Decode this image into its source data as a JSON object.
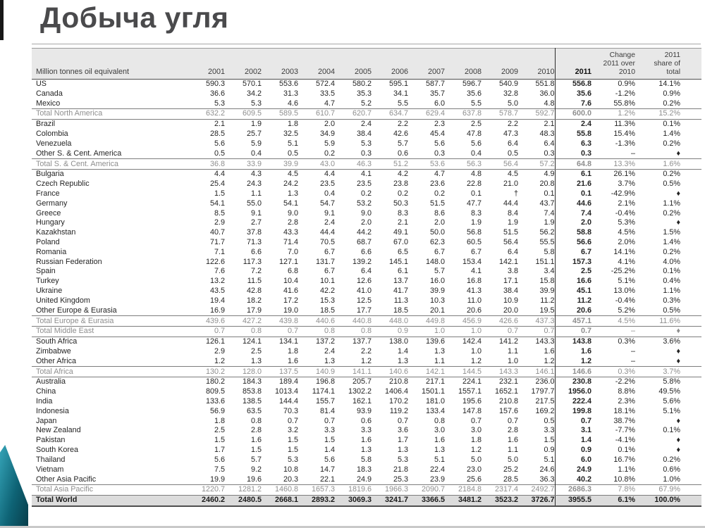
{
  "title": "Добыча угля",
  "table": {
    "unit_label": "Million tonnes oil equivalent",
    "years": [
      "2001",
      "2002",
      "2003",
      "2004",
      "2005",
      "2006",
      "2007",
      "2008",
      "2009",
      "2010"
    ],
    "year_2011": "2011",
    "change_header": "Change\n2011 over\n2010",
    "share_header": "2011\nshare of\ntotal",
    "rows": [
      {
        "name": "US",
        "type": "data",
        "values": [
          "590.3",
          "570.1",
          "553.6",
          "572.4",
          "580.2",
          "595.1",
          "587.7",
          "596.7",
          "540.9",
          "551.8"
        ],
        "v2011": "556.8",
        "change": "0.9%",
        "share": "14.1%"
      },
      {
        "name": "Canada",
        "type": "data",
        "values": [
          "36.6",
          "34.2",
          "31.3",
          "33.5",
          "35.3",
          "34.1",
          "35.7",
          "35.6",
          "32.8",
          "36.0"
        ],
        "v2011": "35.6",
        "change": "-1.2%",
        "share": "0.9%"
      },
      {
        "name": "Mexico",
        "type": "data",
        "values": [
          "5.3",
          "5.3",
          "4.6",
          "4.7",
          "5.2",
          "5.5",
          "6.0",
          "5.5",
          "5.0",
          "4.8"
        ],
        "v2011": "7.6",
        "change": "55.8%",
        "share": "0.2%"
      },
      {
        "name": "Total North America",
        "type": "total",
        "values": [
          "632.2",
          "609.5",
          "589.5",
          "610.7",
          "620.7",
          "634.7",
          "629.4",
          "637.8",
          "578.7",
          "592.7"
        ],
        "v2011": "600.0",
        "change": "1.2%",
        "share": "15.2%"
      },
      {
        "name": "Brazil",
        "type": "data",
        "values": [
          "2.1",
          "1.9",
          "1.8",
          "2.0",
          "2.4",
          "2.2",
          "2.3",
          "2.5",
          "2.2",
          "2.1"
        ],
        "v2011": "2.4",
        "change": "11.3%",
        "share": "0.1%"
      },
      {
        "name": "Colombia",
        "type": "data",
        "values": [
          "28.5",
          "25.7",
          "32.5",
          "34.9",
          "38.4",
          "42.6",
          "45.4",
          "47.8",
          "47.3",
          "48.3"
        ],
        "v2011": "55.8",
        "change": "15.4%",
        "share": "1.4%"
      },
      {
        "name": "Venezuela",
        "type": "data",
        "values": [
          "5.6",
          "5.9",
          "5.1",
          "5.9",
          "5.3",
          "5.7",
          "5.6",
          "5.6",
          "6.4",
          "6.4"
        ],
        "v2011": "6.3",
        "change": "-1.3%",
        "share": "0.2%"
      },
      {
        "name": "Other S. & Cent. America",
        "type": "data",
        "values": [
          "0.5",
          "0.4",
          "0.5",
          "0.2",
          "0.3",
          "0.6",
          "0.3",
          "0.4",
          "0.5",
          "0.3"
        ],
        "v2011": "0.3",
        "change": "–",
        "share": "♦"
      },
      {
        "name": "Total S. & Cent. America",
        "type": "total",
        "values": [
          "36.8",
          "33.9",
          "39.9",
          "43.0",
          "46.3",
          "51.2",
          "53.6",
          "56.3",
          "56.4",
          "57.2"
        ],
        "v2011": "64.8",
        "change": "13.3%",
        "share": "1.6%"
      },
      {
        "name": "Bulgaria",
        "type": "data",
        "values": [
          "4.4",
          "4.3",
          "4.5",
          "4.4",
          "4.1",
          "4.2",
          "4.7",
          "4.8",
          "4.5",
          "4.9"
        ],
        "v2011": "6.1",
        "change": "26.1%",
        "share": "0.2%"
      },
      {
        "name": "Czech Republic",
        "type": "data",
        "values": [
          "25.4",
          "24.3",
          "24.2",
          "23.5",
          "23.5",
          "23.8",
          "23.6",
          "22.8",
          "21.0",
          "20.8"
        ],
        "v2011": "21.6",
        "change": "3.7%",
        "share": "0.5%"
      },
      {
        "name": "France",
        "type": "data",
        "values": [
          "1.5",
          "1.1",
          "1.3",
          "0.4",
          "0.2",
          "0.2",
          "0.2",
          "0.1",
          "†",
          "0.1"
        ],
        "v2011": "0.1",
        "change": "-42.9%",
        "share": "♦"
      },
      {
        "name": "Germany",
        "type": "data",
        "values": [
          "54.1",
          "55.0",
          "54.1",
          "54.7",
          "53.2",
          "50.3",
          "51.5",
          "47.7",
          "44.4",
          "43.7"
        ],
        "v2011": "44.6",
        "change": "2.1%",
        "share": "1.1%"
      },
      {
        "name": "Greece",
        "type": "data",
        "values": [
          "8.5",
          "9.1",
          "9.0",
          "9.1",
          "9.0",
          "8.3",
          "8.6",
          "8.3",
          "8.4",
          "7.4"
        ],
        "v2011": "7.4",
        "change": "-0.4%",
        "share": "0.2%"
      },
      {
        "name": "Hungary",
        "type": "data",
        "values": [
          "2.9",
          "2.7",
          "2.8",
          "2.4",
          "2.0",
          "2.1",
          "2.0",
          "1.9",
          "1.9",
          "1.9"
        ],
        "v2011": "2.0",
        "change": "5.3%",
        "share": "♦"
      },
      {
        "name": "Kazakhstan",
        "type": "data",
        "values": [
          "40.7",
          "37.8",
          "43.3",
          "44.4",
          "44.2",
          "49.1",
          "50.0",
          "56.8",
          "51.5",
          "56.2"
        ],
        "v2011": "58.8",
        "change": "4.5%",
        "share": "1.5%"
      },
      {
        "name": "Poland",
        "type": "data",
        "values": [
          "71.7",
          "71.3",
          "71.4",
          "70.5",
          "68.7",
          "67.0",
          "62.3",
          "60.5",
          "56.4",
          "55.5"
        ],
        "v2011": "56.6",
        "change": "2.0%",
        "share": "1.4%"
      },
      {
        "name": "Romania",
        "type": "data",
        "values": [
          "7.1",
          "6.6",
          "7.0",
          "6.7",
          "6.6",
          "6.5",
          "6.7",
          "6.7",
          "6.4",
          "5.8"
        ],
        "v2011": "6.7",
        "change": "14.1%",
        "share": "0.2%"
      },
      {
        "name": "Russian Federation",
        "type": "data",
        "values": [
          "122.6",
          "117.3",
          "127.1",
          "131.7",
          "139.2",
          "145.1",
          "148.0",
          "153.4",
          "142.1",
          "151.1"
        ],
        "v2011": "157.3",
        "change": "4.1%",
        "share": "4.0%"
      },
      {
        "name": "Spain",
        "type": "data",
        "values": [
          "7.6",
          "7.2",
          "6.8",
          "6.7",
          "6.4",
          "6.1",
          "5.7",
          "4.1",
          "3.8",
          "3.4"
        ],
        "v2011": "2.5",
        "change": "-25.2%",
        "share": "0.1%"
      },
      {
        "name": "Turkey",
        "type": "data",
        "values": [
          "13.2",
          "11.5",
          "10.4",
          "10.1",
          "12.6",
          "13.7",
          "16.0",
          "16.8",
          "17.1",
          "15.8"
        ],
        "v2011": "16.6",
        "change": "5.1%",
        "share": "0.4%"
      },
      {
        "name": "Ukraine",
        "type": "data",
        "values": [
          "43.5",
          "42.8",
          "41.6",
          "42.2",
          "41.0",
          "41.7",
          "39.9",
          "41.3",
          "38.4",
          "39.9"
        ],
        "v2011": "45.1",
        "change": "13.0%",
        "share": "1.1%"
      },
      {
        "name": "United Kingdom",
        "type": "data",
        "values": [
          "19.4",
          "18.2",
          "17.2",
          "15.3",
          "12.5",
          "11.3",
          "10.3",
          "11.0",
          "10.9",
          "11.2"
        ],
        "v2011": "11.2",
        "change": "-0.4%",
        "share": "0.3%"
      },
      {
        "name": "Other Europe & Eurasia",
        "type": "data",
        "values": [
          "16.9",
          "17.9",
          "19.0",
          "18.5",
          "17.7",
          "18.5",
          "20.1",
          "20.6",
          "20.0",
          "19.5"
        ],
        "v2011": "20.6",
        "change": "5.2%",
        "share": "0.5%"
      },
      {
        "name": "Total Europe & Eurasia",
        "type": "total",
        "values": [
          "439.6",
          "427.2",
          "439.8",
          "440.6",
          "440.8",
          "448.0",
          "449.8",
          "456.9",
          "426.6",
          "437.3"
        ],
        "v2011": "457.1",
        "change": "4.5%",
        "share": "11.6%"
      },
      {
        "name": "Total Middle East",
        "type": "total",
        "values": [
          "0.7",
          "0.8",
          "0.7",
          "0.8",
          "0.8",
          "0.9",
          "1.0",
          "1.0",
          "0.7",
          "0.7"
        ],
        "v2011": "0.7",
        "change": "–",
        "share": "♦"
      },
      {
        "name": "South Africa",
        "type": "data",
        "values": [
          "126.1",
          "124.1",
          "134.1",
          "137.2",
          "137.7",
          "138.0",
          "139.6",
          "142.4",
          "141.2",
          "143.3"
        ],
        "v2011": "143.8",
        "change": "0.3%",
        "share": "3.6%"
      },
      {
        "name": "Zimbabwe",
        "type": "data",
        "values": [
          "2.9",
          "2.5",
          "1.8",
          "2.4",
          "2.2",
          "1.4",
          "1.3",
          "1.0",
          "1.1",
          "1.6"
        ],
        "v2011": "1.6",
        "change": "–",
        "share": "♦"
      },
      {
        "name": "Other Africa",
        "type": "data",
        "values": [
          "1.2",
          "1.3",
          "1.6",
          "1.3",
          "1.2",
          "1.3",
          "1.1",
          "1.2",
          "1.0",
          "1.2"
        ],
        "v2011": "1.2",
        "change": "–",
        "share": "♦"
      },
      {
        "name": "Total Africa",
        "type": "total",
        "values": [
          "130.2",
          "128.0",
          "137.5",
          "140.9",
          "141.1",
          "140.6",
          "142.1",
          "144.5",
          "143.3",
          "146.1"
        ],
        "v2011": "146.6",
        "change": "0.3%",
        "share": "3.7%"
      },
      {
        "name": "Australia",
        "type": "data",
        "values": [
          "180.2",
          "184.3",
          "189.4",
          "196.8",
          "205.7",
          "210.8",
          "217.1",
          "224.1",
          "232.1",
          "236.0"
        ],
        "v2011": "230.8",
        "change": "-2.2%",
        "share": "5.8%"
      },
      {
        "name": "China",
        "type": "data",
        "values": [
          "809.5",
          "853.8",
          "1013.4",
          "1174.1",
          "1302.2",
          "1406.4",
          "1501.1",
          "1557.1",
          "1652.1",
          "1797.7"
        ],
        "v2011": "1956.0",
        "change": "8.8%",
        "share": "49.5%"
      },
      {
        "name": "India",
        "type": "data",
        "values": [
          "133.6",
          "138.5",
          "144.4",
          "155.7",
          "162.1",
          "170.2",
          "181.0",
          "195.6",
          "210.8",
          "217.5"
        ],
        "v2011": "222.4",
        "change": "2.3%",
        "share": "5.6%"
      },
      {
        "name": "Indonesia",
        "type": "data",
        "values": [
          "56.9",
          "63.5",
          "70.3",
          "81.4",
          "93.9",
          "119.2",
          "133.4",
          "147.8",
          "157.6",
          "169.2"
        ],
        "v2011": "199.8",
        "change": "18.1%",
        "share": "5.1%"
      },
      {
        "name": "Japan",
        "type": "data",
        "values": [
          "1.8",
          "0.8",
          "0.7",
          "0.7",
          "0.6",
          "0.7",
          "0.8",
          "0.7",
          "0.7",
          "0.5"
        ],
        "v2011": "0.7",
        "change": "38.7%",
        "share": "♦"
      },
      {
        "name": "New Zealand",
        "type": "data",
        "values": [
          "2.5",
          "2.8",
          "3.2",
          "3.3",
          "3.3",
          "3.6",
          "3.0",
          "3.0",
          "2.8",
          "3.3"
        ],
        "v2011": "3.1",
        "change": "-7.7%",
        "share": "0.1%"
      },
      {
        "name": "Pakistan",
        "type": "data",
        "values": [
          "1.5",
          "1.6",
          "1.5",
          "1.5",
          "1.6",
          "1.7",
          "1.6",
          "1.8",
          "1.6",
          "1.5"
        ],
        "v2011": "1.4",
        "change": "-4.1%",
        "share": "♦"
      },
      {
        "name": "South Korea",
        "type": "data",
        "values": [
          "1.7",
          "1.5",
          "1.5",
          "1.4",
          "1.3",
          "1.3",
          "1.3",
          "1.2",
          "1.1",
          "0.9"
        ],
        "v2011": "0.9",
        "change": "0.1%",
        "share": "♦"
      },
      {
        "name": "Thailand",
        "type": "data",
        "values": [
          "5.6",
          "5.7",
          "5.3",
          "5.6",
          "5.8",
          "5.3",
          "5.1",
          "5.0",
          "5.0",
          "5.1"
        ],
        "v2011": "6.0",
        "change": "16.7%",
        "share": "0.2%"
      },
      {
        "name": "Vietnam",
        "type": "data",
        "values": [
          "7.5",
          "9.2",
          "10.8",
          "14.7",
          "18.3",
          "21.8",
          "22.4",
          "23.0",
          "25.2",
          "24.6"
        ],
        "v2011": "24.9",
        "change": "1.1%",
        "share": "0.6%"
      },
      {
        "name": "Other Asia Pacific",
        "type": "data",
        "values": [
          "19.9",
          "19.6",
          "20.3",
          "22.1",
          "24.9",
          "25.3",
          "23.9",
          "25.6",
          "28.5",
          "36.3"
        ],
        "v2011": "40.2",
        "change": "10.8%",
        "share": "1.0%"
      },
      {
        "name": "Total Asia Pacific",
        "type": "total",
        "values": [
          "1220.7",
          "1281.2",
          "1460.8",
          "1657.3",
          "1819.6",
          "1966.3",
          "2090.7",
          "2184.8",
          "2317.4",
          "2492.7"
        ],
        "v2011": "2686.3",
        "change": "7.8%",
        "share": "67.9%"
      },
      {
        "name": "Total World",
        "type": "grand",
        "values": [
          "2460.2",
          "2480.5",
          "2668.1",
          "2893.2",
          "3069.3",
          "3241.7",
          "3366.5",
          "3481.2",
          "3523.2",
          "3726.7"
        ],
        "v2011": "3955.5",
        "change": "6.1%",
        "share": "100.0%"
      }
    ]
  },
  "colors": {
    "accent_teal": "#0e6375",
    "title_gray": "#4a4a4c",
    "header_band": "#e8e8e8",
    "grand_total_band": "#dcdcdc"
  }
}
